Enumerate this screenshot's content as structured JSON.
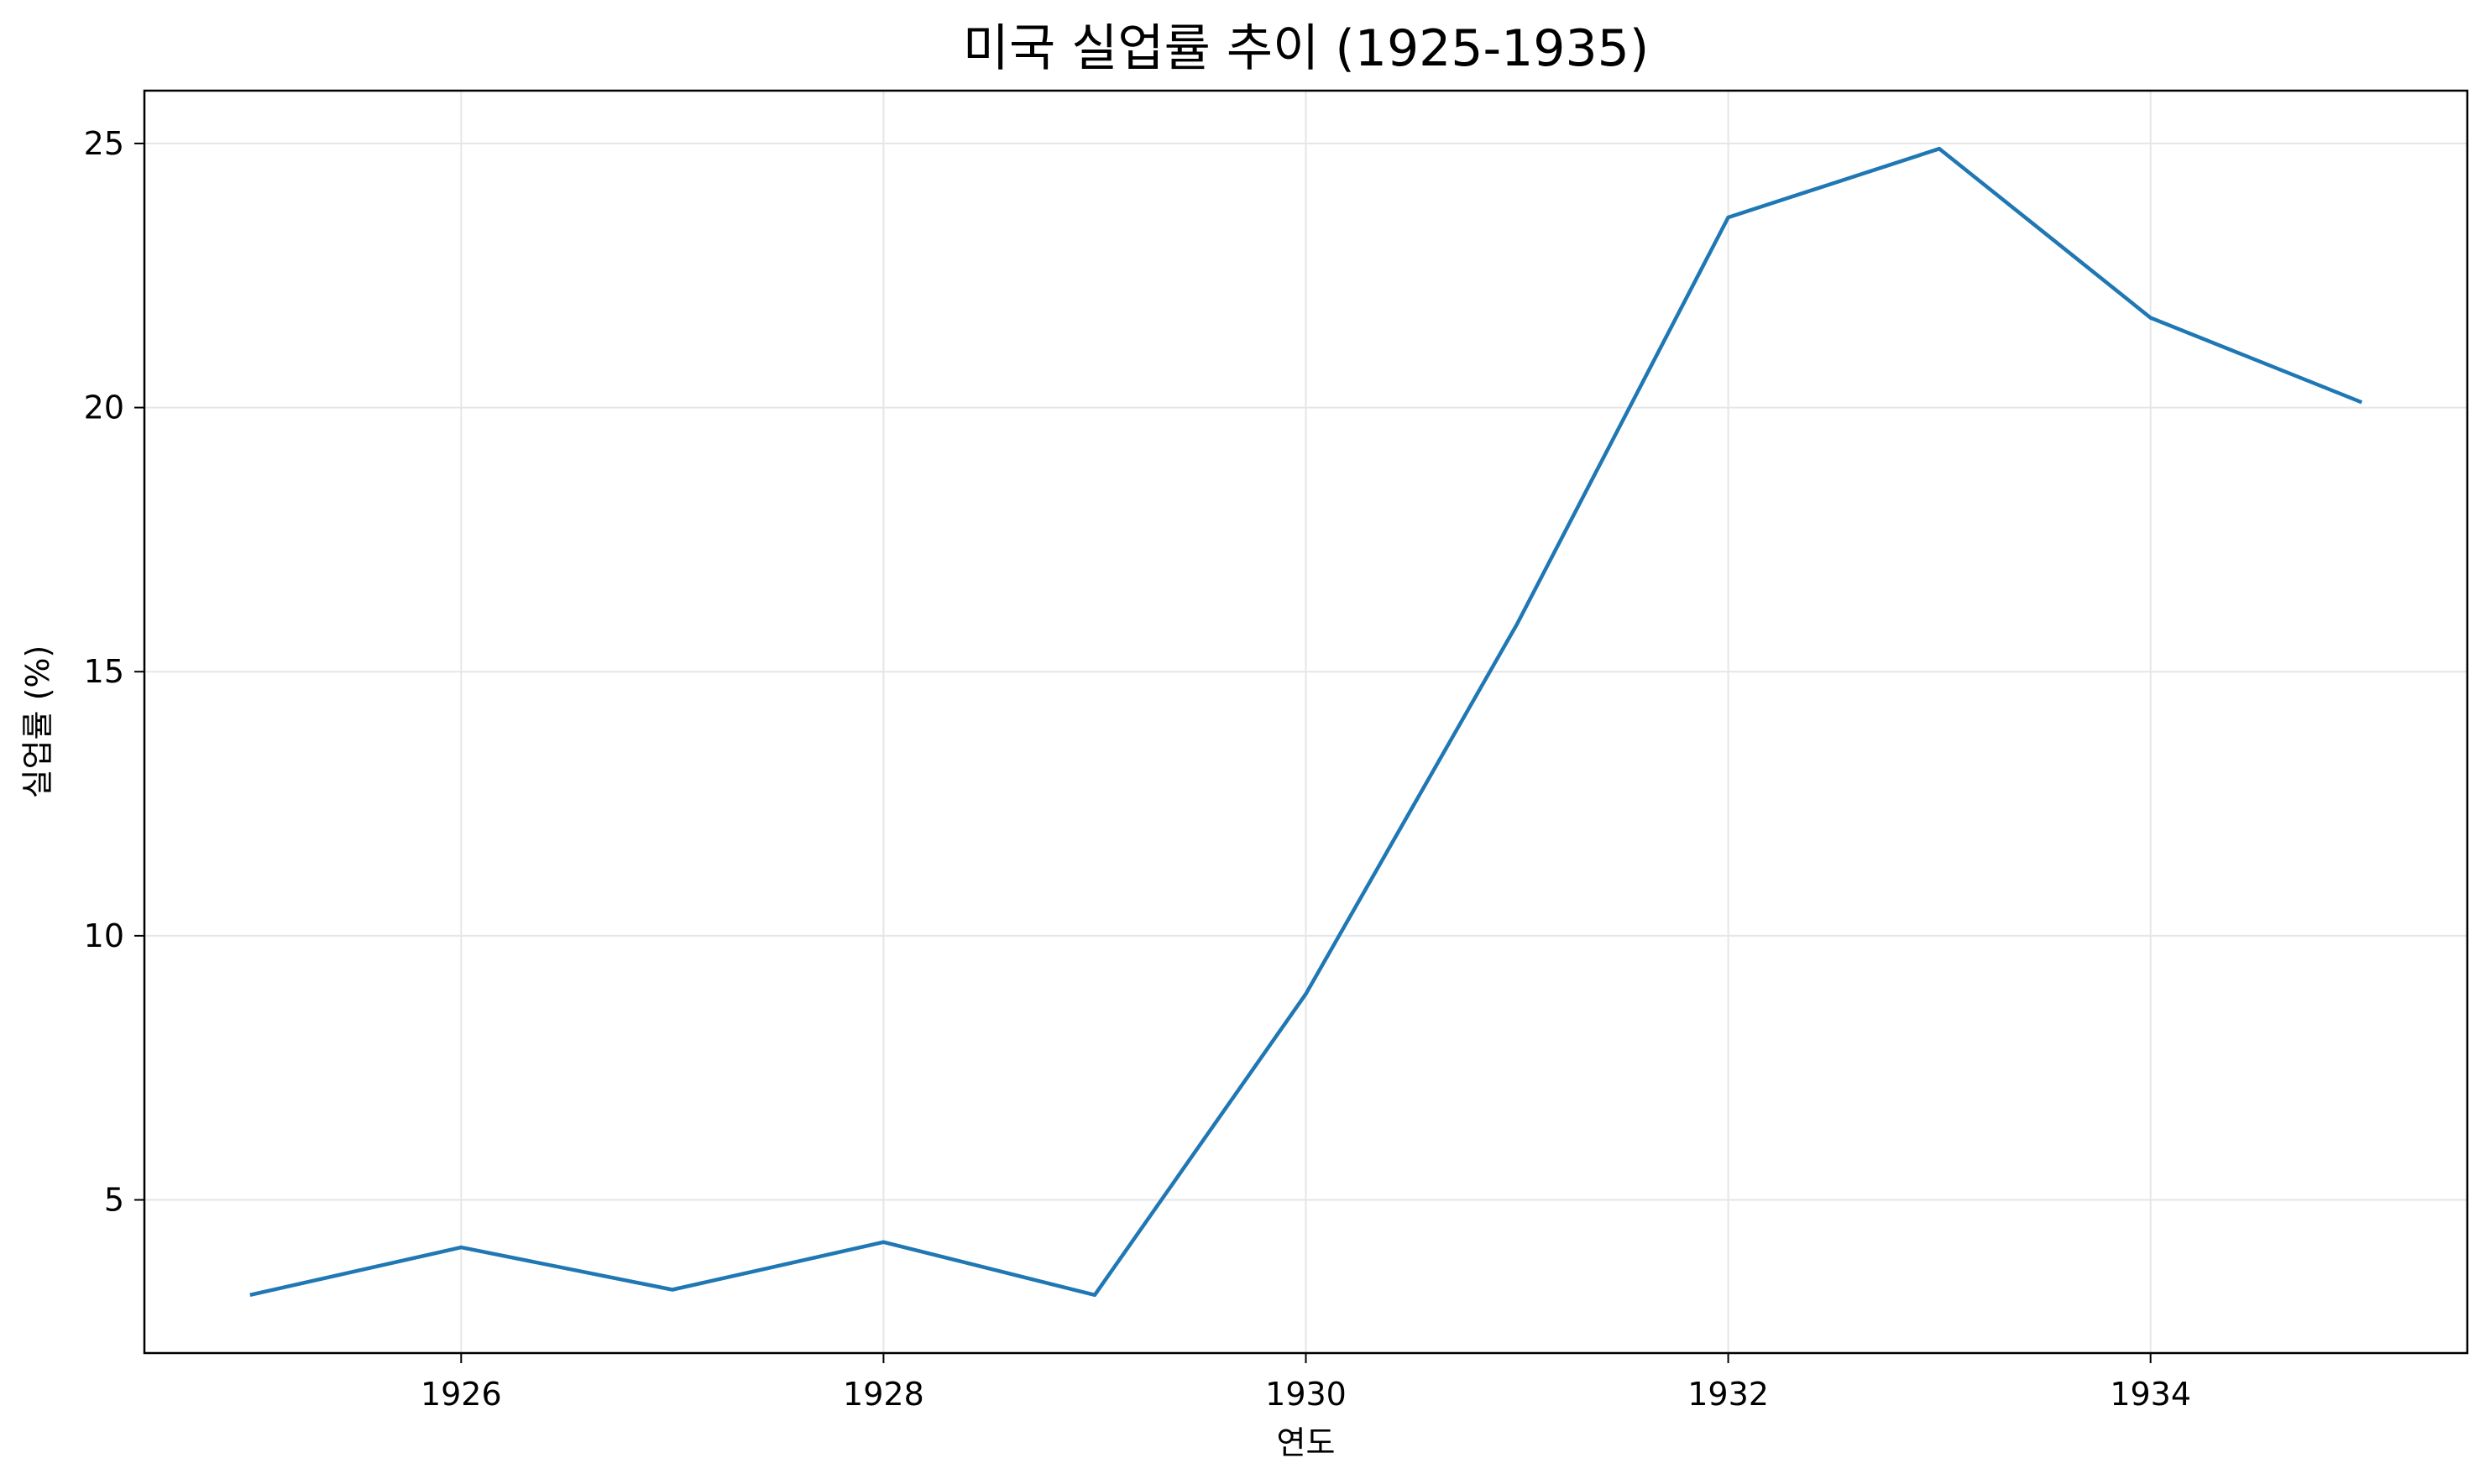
{
  "chart_data": {
    "type": "line",
    "title": "미국 실업률 추이 (1925-1935)",
    "xlabel": "연도",
    "ylabel": "실업률 (%)",
    "x": [
      1925,
      1926,
      1927,
      1928,
      1929,
      1930,
      1931,
      1932,
      1933,
      1934,
      1935
    ],
    "series": [
      {
        "values": [
          3.2,
          4.1,
          3.3,
          4.2,
          3.2,
          8.9,
          15.9,
          23.6,
          24.9,
          21.7,
          20.1
        ],
        "color": "#1f77b4"
      }
    ],
    "xlim": [
      1924.5,
      1935.5
    ],
    "ylim": [
      2.1,
      26.0
    ],
    "xticks": [
      1926,
      1928,
      1930,
      1932,
      1934
    ],
    "yticks": [
      5,
      10,
      15,
      20,
      25
    ],
    "grid": true
  }
}
